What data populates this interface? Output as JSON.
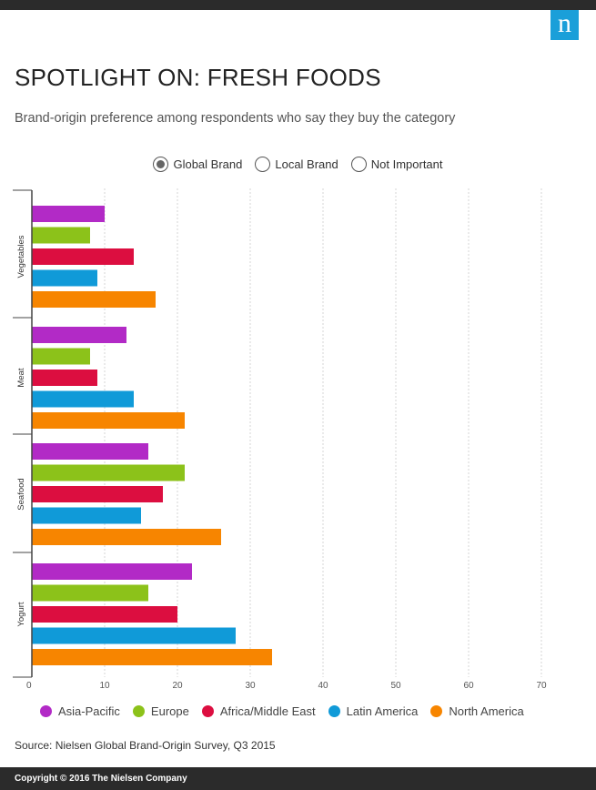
{
  "header": {
    "logo": "n"
  },
  "title": "SPOTLIGHT ON: FRESH FOODS",
  "subtitle": "Brand-origin preference among respondents who say they buy the category",
  "radio_options": [
    {
      "label": "Global Brand",
      "selected": true
    },
    {
      "label": "Local Brand",
      "selected": false
    },
    {
      "label": "Not Important",
      "selected": false
    }
  ],
  "chart_data": {
    "type": "bar",
    "orientation": "horizontal",
    "title": "SPOTLIGHT ON: FRESH FOODS",
    "categories": [
      "Vegetables",
      "Meat",
      "Seafood",
      "Yogurt"
    ],
    "series": [
      {
        "name": "Asia-Pacific",
        "color": "#b22ac6",
        "values": [
          10,
          13,
          16,
          22
        ]
      },
      {
        "name": "Europe",
        "color": "#8cc21a",
        "values": [
          8,
          8,
          21,
          16
        ]
      },
      {
        "name": "Africa/Middle East",
        "color": "#dc0e40",
        "values": [
          14,
          9,
          18,
          20
        ]
      },
      {
        "name": "Latin America",
        "color": "#109ad8",
        "values": [
          9,
          14,
          15,
          28
        ]
      },
      {
        "name": "North America",
        "color": "#f78500",
        "values": [
          17,
          21,
          26,
          33
        ]
      }
    ],
    "xlim": [
      0,
      70
    ],
    "ticks": [
      "0",
      "10",
      "20",
      "30",
      "40",
      "50",
      "60",
      "70"
    ],
    "xlabel": "",
    "ylabel": "",
    "grid": true,
    "legend": "bottom"
  },
  "source": "Source: Nielsen Global Brand-Origin Survey, Q3 2015",
  "footer": "Copyright © 2016 The Nielsen Company"
}
